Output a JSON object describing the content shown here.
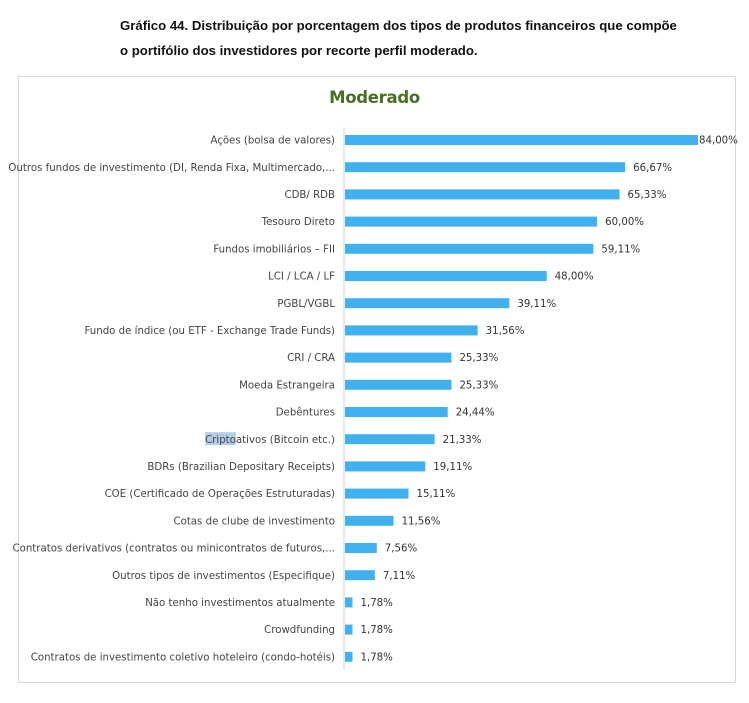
{
  "caption": {
    "line1": "Gráfico 44. Distribuição por porcentagem dos tipos de produtos financeiros que compõe",
    "line2": "o portifólio dos investidores por recorte perfil moderado."
  },
  "colors": {
    "bar": "#41b0ee",
    "title": "#4b6e26",
    "axis": "#d0d0d0",
    "highlight": "#b3cfe8"
  },
  "chart_data": {
    "type": "bar",
    "orientation": "horizontal",
    "title": "Moderado",
    "xlabel": "",
    "ylabel": "",
    "xlim": [
      0,
      84
    ],
    "grid": false,
    "legend": "none",
    "categories": [
      "Ações (bolsa de valores)",
      "Outros fundos de investimento (DI, Renda Fixa, Multimercado,...",
      "CDB/ RDB",
      "Tesouro Direto",
      "Fundos imobiliários – FII",
      "LCI / LCA / LF",
      "PGBL/VGBL",
      "Fundo de índice (ou ETF - Exchange Trade Funds)",
      "CRI / CRA",
      "Moeda Estrangeira",
      "Debêntures",
      "Criptoativos (Bitcoin etc.)",
      "BDRs (Brazilian Depositary Receipts)",
      "COE (Certificado de Operações Estruturadas)",
      "Cotas de clube de investimento",
      "Contratos derivativos (contratos ou minicontratos de futuros,...",
      "Outros tipos de investimentos (Especifique)",
      "Não tenho investimentos atualmente",
      "Crowdfunding",
      "Contratos de investimento coletivo hoteleiro (condo-hotéis)"
    ],
    "values": [
      84.0,
      66.67,
      65.33,
      60.0,
      59.11,
      48.0,
      39.11,
      31.56,
      25.33,
      25.33,
      24.44,
      21.33,
      19.11,
      15.11,
      11.56,
      7.56,
      7.11,
      1.78,
      1.78,
      1.78
    ],
    "value_labels": [
      "84,00%",
      "66,67%",
      "65,33%",
      "60,00%",
      "59,11%",
      "48,00%",
      "39,11%",
      "31,56%",
      "25,33%",
      "25,33%",
      "24,44%",
      "21,33%",
      "19,11%",
      "15,11%",
      "11,56%",
      "7,56%",
      "7,11%",
      "1,78%",
      "1,78%",
      "1,78%"
    ],
    "highlighted_text": {
      "category_index": 11,
      "substring": "Cripto"
    }
  }
}
